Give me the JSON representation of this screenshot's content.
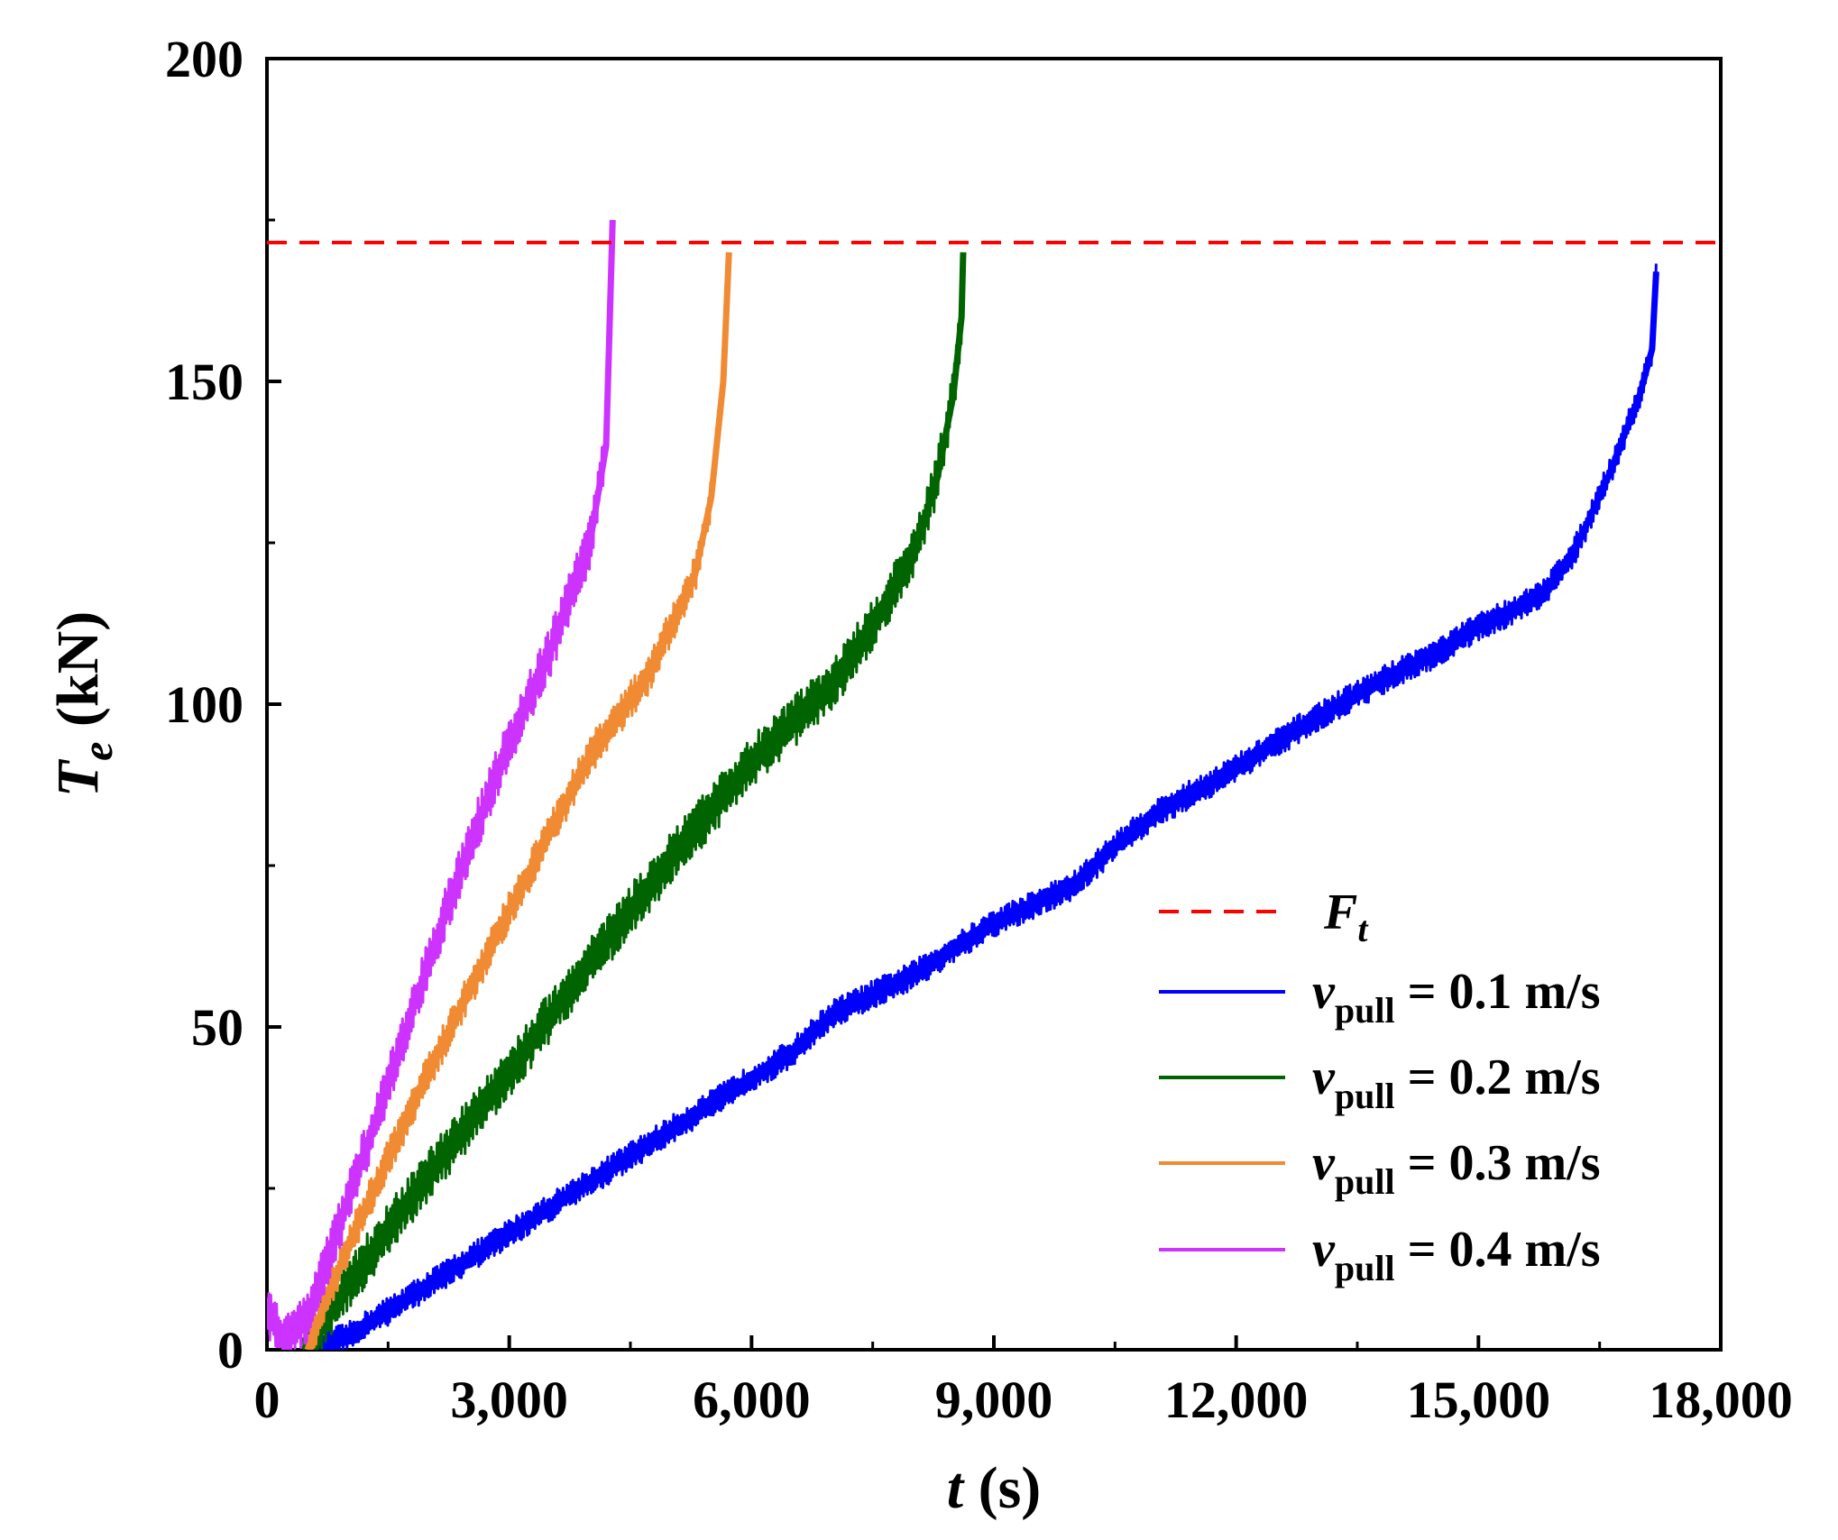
{
  "chart_data": {
    "type": "line",
    "xlabel": {
      "var": "t",
      "unit": "(s)"
    },
    "ylabel": {
      "var": "T",
      "sub": "e",
      "unit": "(kN)"
    },
    "xlim": [
      0,
      18000
    ],
    "ylim": [
      0,
      200
    ],
    "xticks": [
      0,
      3000,
      6000,
      9000,
      12000,
      15000,
      18000
    ],
    "xtick_labels": [
      "0",
      "3,000",
      "6,000",
      "9,000",
      "12,000",
      "15,000",
      "18,000"
    ],
    "xminor": [
      1500,
      4500,
      7500,
      10500,
      13500,
      16500
    ],
    "yticks": [
      0,
      50,
      100,
      150,
      200
    ],
    "ytick_labels": [
      "0",
      "50",
      "100",
      "150",
      "200"
    ],
    "yminor": [
      25,
      75,
      125,
      175
    ],
    "reference_line": {
      "name": "F",
      "sub": "t",
      "y": 171.5,
      "color": "#ff0000",
      "style": "dashed"
    },
    "series": [
      {
        "label_var": "v",
        "label_sub": "pull",
        "label_value": "= 0.1 m/s",
        "color": "#0000ff",
        "band": 2.2,
        "x": [
          500,
          1000,
          1500,
          2000,
          2500,
          3000,
          4000,
          5000,
          6000,
          6500,
          7000,
          8000,
          9000,
          10000,
          10500,
          11000,
          12000,
          13000,
          14000,
          14500,
          15000,
          15500,
          15800,
          16200,
          16600,
          17000,
          17150,
          17200
        ],
        "y": [
          0,
          2,
          6,
          10,
          14,
          18,
          26,
          34,
          42,
          46,
          52,
          58,
          66,
          72,
          78,
          83,
          90,
          98,
          105,
          108,
          112,
          115,
          117,
          124,
          135,
          148,
          155,
          167
        ]
      },
      {
        "label_var": "v",
        "label_sub": "pull",
        "label_value": "= 0.2 m/s",
        "color": "#006400",
        "band": 4,
        "x": [
          450,
          1000,
          2000,
          3000,
          4000,
          5000,
          6000,
          7000,
          7500,
          8000,
          8300,
          8500,
          8600,
          8620
        ],
        "y": [
          0,
          10,
          27,
          43,
          60,
          76,
          91,
          103,
          112,
          123,
          135,
          148,
          160,
          170
        ]
      },
      {
        "label_var": "v",
        "label_sub": "pull",
        "label_value": "= 0.3 m/s",
        "color": "#f08a33",
        "band": 3,
        "x": [
          500,
          1000,
          2000,
          3000,
          4000,
          4700,
          5000,
          5300,
          5500,
          5650,
          5720
        ],
        "y": [
          0,
          16,
          43,
          68,
          92,
          104,
          112,
          120,
          132,
          150,
          170
        ]
      },
      {
        "label_var": "v",
        "label_sub": "pull",
        "label_value": "= 0.4 m/s",
        "color": "#cc33ff",
        "band": 4,
        "x": [
          0,
          200,
          500,
          1000,
          1500,
          2000,
          2500,
          3000,
          3500,
          4000,
          4200,
          4280
        ],
        "y": [
          6,
          2,
          5,
          23,
          41,
          60,
          78,
          94,
          108,
          125,
          140,
          175
        ]
      }
    ]
  }
}
